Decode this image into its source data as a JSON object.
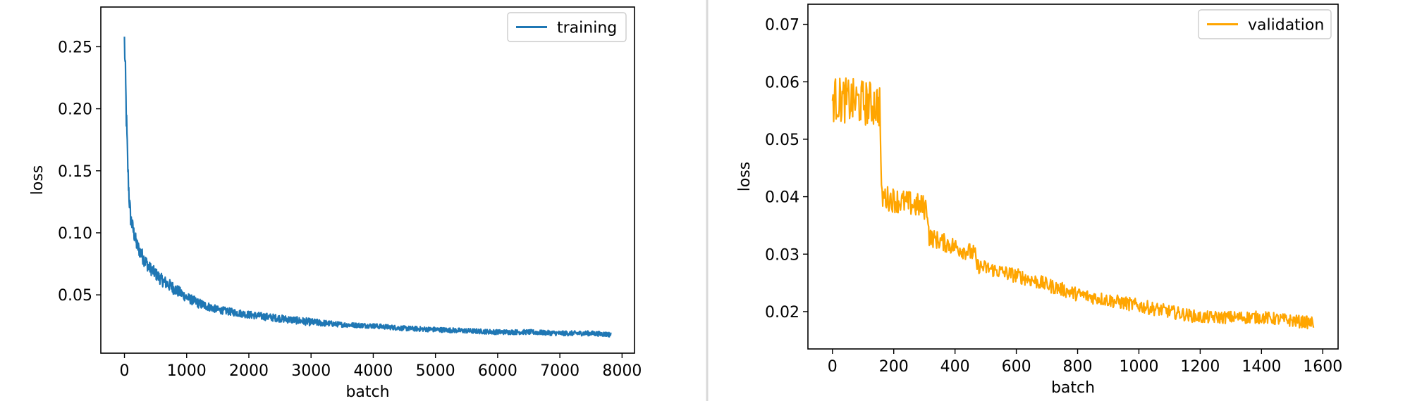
{
  "chart_data": [
    {
      "type": "line",
      "xlabel": "batch",
      "ylabel": "loss",
      "xlim": [
        -380,
        8200
      ],
      "ylim": [
        0.003,
        0.282
      ],
      "xticks": [
        0,
        1000,
        2000,
        3000,
        4000,
        5000,
        6000,
        7000,
        8000
      ],
      "yticks": [
        0.05,
        0.1,
        0.15,
        0.2,
        0.25
      ],
      "ytick_labels": [
        "0.05",
        "0.10",
        "0.15",
        "0.20",
        "0.25"
      ],
      "grid": false,
      "legend_position": "top-right",
      "series": [
        {
          "name": "training",
          "color": "#1f77b4",
          "x": [
            0,
            20,
            40,
            60,
            80,
            100,
            150,
            200,
            300,
            400,
            600,
            800,
            1000,
            1200,
            1500,
            2000,
            2500,
            3000,
            3500,
            4000,
            4500,
            5000,
            5500,
            6000,
            6500,
            7000,
            7500,
            7820
          ],
          "y": [
            0.255,
            0.215,
            0.175,
            0.145,
            0.125,
            0.112,
            0.1,
            0.09,
            0.08,
            0.072,
            0.062,
            0.055,
            0.048,
            0.043,
            0.038,
            0.034,
            0.031,
            0.028,
            0.026,
            0.025,
            0.023,
            0.022,
            0.021,
            0.02,
            0.02,
            0.019,
            0.019,
            0.018
          ],
          "noise": [
            0.01,
            0.015,
            0.012,
            0.01,
            0.008,
            0.007,
            0.006,
            0.006,
            0.006,
            0.005,
            0.005,
            0.005,
            0.004,
            0.004,
            0.003,
            0.003,
            0.003,
            0.003,
            0.002,
            0.002,
            0.002,
            0.002,
            0.002,
            0.002,
            0.002,
            0.002,
            0.002,
            0.002
          ],
          "step": 5
        }
      ]
    },
    {
      "type": "line",
      "xlabel": "batch",
      "ylabel": "loss",
      "xlim": [
        -80,
        1650
      ],
      "ylim": [
        0.0135,
        0.0735
      ],
      "xticks": [
        0,
        200,
        400,
        600,
        800,
        1000,
        1200,
        1400,
        1600
      ],
      "yticks": [
        0.02,
        0.03,
        0.04,
        0.05,
        0.06,
        0.07
      ],
      "ytick_labels": [
        "0.02",
        "0.03",
        "0.04",
        "0.05",
        "0.06",
        "0.07"
      ],
      "grid": false,
      "legend_position": "top-right",
      "series": [
        {
          "name": "validation",
          "color": "#ffa500",
          "x": [
            0,
            155,
            160,
            310,
            315,
            465,
            470,
            620,
            800,
            1000,
            1200,
            1400,
            1570
          ],
          "y": [
            0.057,
            0.056,
            0.04,
            0.038,
            0.033,
            0.03,
            0.028,
            0.026,
            0.023,
            0.021,
            0.019,
            0.019,
            0.018
          ],
          "noise": [
            0.004,
            0.004,
            0.0022,
            0.0022,
            0.0016,
            0.0016,
            0.0013,
            0.0013,
            0.0012,
            0.0012,
            0.0011,
            0.0011,
            0.0011
          ],
          "step": 2
        }
      ]
    }
  ]
}
